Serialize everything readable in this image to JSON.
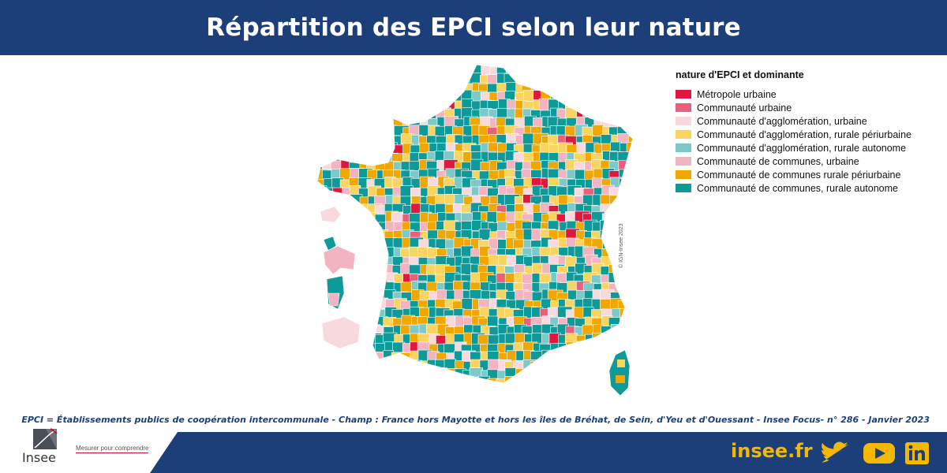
{
  "header": {
    "title": "Répartition des EPCI selon leur nature"
  },
  "map": {
    "copyright": "© IGN-Insee 2023",
    "legend_title": "nature d'EPCI et dominante",
    "legend": [
      {
        "label": "Métropole urbaine",
        "color": "#e0173f"
      },
      {
        "label": "Communauté urbaine",
        "color": "#e8607a"
      },
      {
        "label": "Communauté d'agglomération, urbaine",
        "color": "#f8d9de"
      },
      {
        "label": "Communauté d'agglomération, rurale périurbaine",
        "color": "#f7d560"
      },
      {
        "label": "Communauté d'agglomération, rurale autonome",
        "color": "#7cc9c9"
      },
      {
        "label": "Communauté de communes, urbaine",
        "color": "#f2b4c1"
      },
      {
        "label": "Communauté de communes  rurale périurbaine",
        "color": "#f0a800"
      },
      {
        "label": "Communauté de communes, rurale autonome",
        "color": "#0f9a9a"
      }
    ]
  },
  "footer": {
    "footnote": "EPCI = Établissements publics de coopération intercommunale - Champ : France hors Mayotte et hors les îles de Bréhat, de Sein, d'Yeu et d'Ouessant - Insee Focus- n° 286 - Janvier 2023",
    "logo_word": "Insee",
    "tagline": "Mesurer pour comprendre",
    "site": "insee.fr",
    "brand_accent": "#f5b800",
    "brand_blue": "#1c3f7a"
  }
}
